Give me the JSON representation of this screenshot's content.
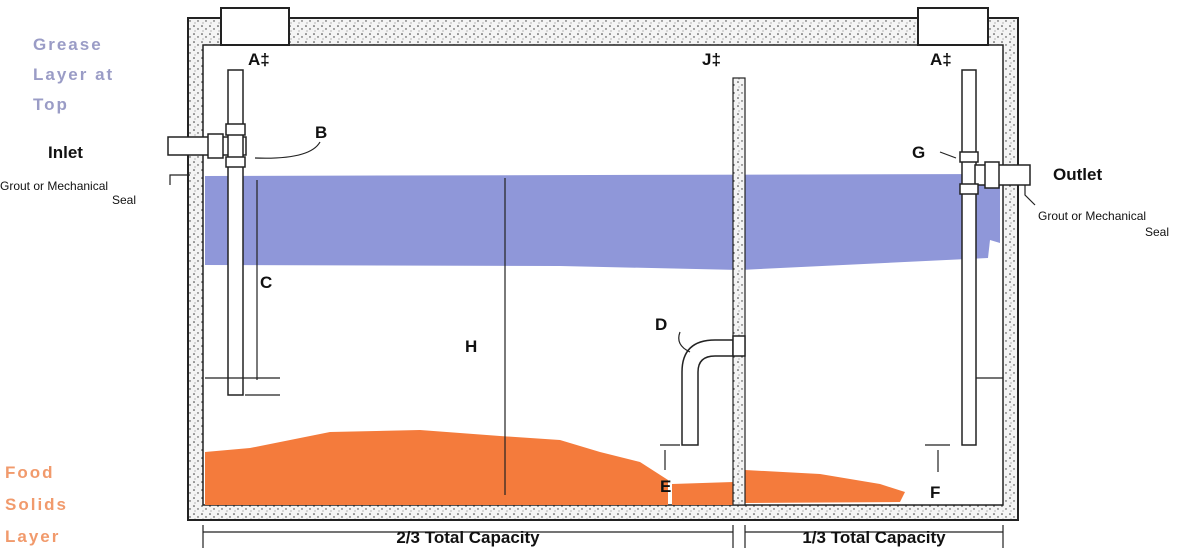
{
  "labels": {
    "grease_layer": [
      "Grease",
      "Layer at",
      "Top"
    ],
    "inlet": "Inlet",
    "inlet_seal": [
      "Grout or Mechanical",
      "Seal"
    ],
    "outlet": "Outlet",
    "outlet_seal": [
      "Grout or Mechanical",
      "Seal"
    ],
    "a_left": "A‡",
    "a_right": "A‡",
    "j": "J‡",
    "b": "B",
    "c": "C",
    "d": "D",
    "e": "E",
    "f": "F",
    "g": "G",
    "h": "H",
    "capacity_left": "2/3 Total Capacity",
    "capacity_right": "1/3 Total Capacity",
    "food_solids": [
      "Food",
      "Solids",
      "Layer"
    ]
  }
}
